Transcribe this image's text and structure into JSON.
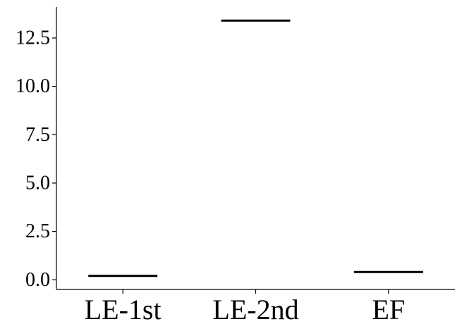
{
  "chart_data": {
    "type": "bar",
    "categories": [
      "LE-1st",
      "LE-2nd",
      "EF"
    ],
    "values": [
      0.2,
      13.4,
      0.4
    ],
    "ylim": [
      -0.5,
      14.1
    ],
    "yticks": [
      0.0,
      2.5,
      5.0,
      7.5,
      10.0,
      12.5
    ],
    "ytick_labels": [
      "0.0",
      "2.5",
      "5.0",
      "7.5",
      "10.0",
      "12.5"
    ],
    "grid": false,
    "colors": {
      "marker": "#000000",
      "axis": "#000000"
    }
  }
}
